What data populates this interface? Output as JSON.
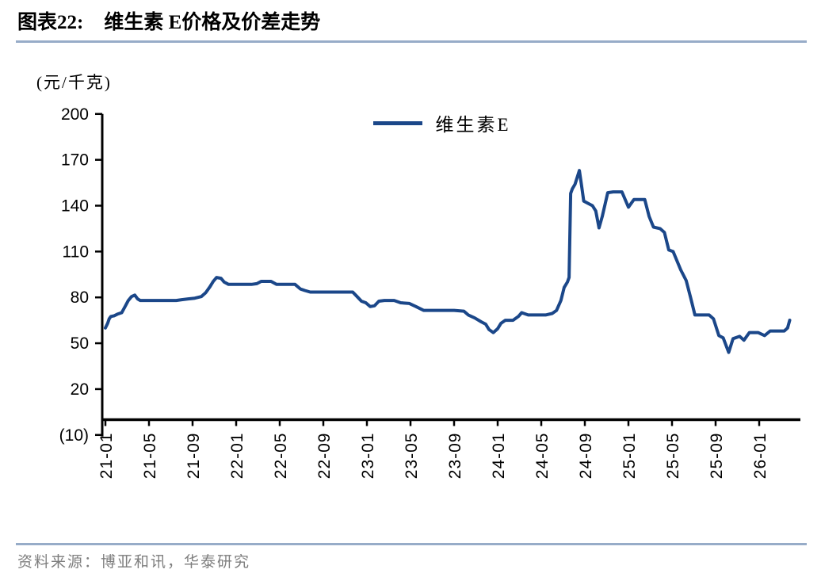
{
  "figure": {
    "label": "图表22:",
    "title": "维生素 E价格及价差走势",
    "unit": "(元/千克)",
    "source": "资料来源：博亚和讯，华泰研究"
  },
  "colors": {
    "line": "#1b4789",
    "separator": "#97acc8",
    "axis": "#000000",
    "source_text": "#7e7e7e"
  },
  "chart_data": {
    "type": "line",
    "title": "维生素 E价格及价差走势",
    "ylabel": "(元/千克)",
    "xlabel": "",
    "grid": false,
    "legend_position": "top-center",
    "ylim": [
      -10,
      200
    ],
    "yticks": [
      200,
      170,
      140,
      110,
      80,
      50,
      20,
      -10
    ],
    "ytick_labels": [
      "200",
      "170",
      "140",
      "110",
      "80",
      "50",
      "20",
      "(10)"
    ],
    "x_start": "2021-01",
    "x_end": "2026-03",
    "x_unit": "months since 2021-01",
    "x_ticks": [
      {
        "offset": 0,
        "label": "21-01"
      },
      {
        "offset": 4,
        "label": "21-05"
      },
      {
        "offset": 8,
        "label": "21-09"
      },
      {
        "offset": 12,
        "label": "22-01"
      },
      {
        "offset": 16,
        "label": "22-05"
      },
      {
        "offset": 20,
        "label": "22-09"
      },
      {
        "offset": 24,
        "label": "23-01"
      },
      {
        "offset": 28,
        "label": "23-05"
      },
      {
        "offset": 32,
        "label": "23-09"
      },
      {
        "offset": 36,
        "label": "24-01"
      },
      {
        "offset": 40,
        "label": "24-05"
      },
      {
        "offset": 44,
        "label": "24-09"
      },
      {
        "offset": 48,
        "label": "25-01"
      },
      {
        "offset": 52,
        "label": "25-05"
      },
      {
        "offset": 56,
        "label": "25-09"
      },
      {
        "offset": 60,
        "label": "26-01"
      }
    ],
    "series": [
      {
        "name": "维生素E",
        "color": "#1b4789",
        "points": [
          [
            0,
            60
          ],
          [
            0.2,
            63
          ],
          [
            0.35,
            66
          ],
          [
            0.5,
            67.5
          ],
          [
            0.8,
            68
          ],
          [
            1.1,
            69
          ],
          [
            1.5,
            70
          ],
          [
            1.8,
            74
          ],
          [
            2.1,
            78
          ],
          [
            2.4,
            80.5
          ],
          [
            2.7,
            81.5
          ],
          [
            2.95,
            79
          ],
          [
            3.2,
            78
          ],
          [
            4,
            78
          ],
          [
            5,
            78
          ],
          [
            6,
            78
          ],
          [
            6.5,
            78
          ],
          [
            7,
            78.5
          ],
          [
            7.6,
            79
          ],
          [
            8.2,
            79.5
          ],
          [
            8.8,
            80.5
          ],
          [
            9.2,
            83
          ],
          [
            9.6,
            87
          ],
          [
            9.9,
            90.5
          ],
          [
            10.2,
            93
          ],
          [
            10.6,
            92.5
          ],
          [
            10.9,
            90
          ],
          [
            11.3,
            88.5
          ],
          [
            12,
            88.5
          ],
          [
            12.7,
            88.5
          ],
          [
            13.4,
            88.5
          ],
          [
            13.9,
            89
          ],
          [
            14.3,
            90.5
          ],
          [
            15.2,
            90.5
          ],
          [
            15.7,
            88.5
          ],
          [
            16.5,
            88.5
          ],
          [
            17.4,
            88.5
          ],
          [
            17.9,
            85.5
          ],
          [
            18.3,
            84.5
          ],
          [
            18.8,
            83.5
          ],
          [
            19.6,
            83.5
          ],
          [
            20.6,
            83.5
          ],
          [
            21.6,
            83.5
          ],
          [
            22.7,
            83.5
          ],
          [
            23.1,
            80.5
          ],
          [
            23.5,
            77.5
          ],
          [
            23.9,
            76.5
          ],
          [
            24.3,
            74
          ],
          [
            24.7,
            74.5
          ],
          [
            25.1,
            77.5
          ],
          [
            25.6,
            78
          ],
          [
            26.5,
            78
          ],
          [
            27.1,
            76.5
          ],
          [
            27.9,
            76
          ],
          [
            28.5,
            74
          ],
          [
            29.2,
            71.5
          ],
          [
            30,
            71.5
          ],
          [
            31,
            71.5
          ],
          [
            32,
            71.5
          ],
          [
            32.9,
            71
          ],
          [
            33.3,
            68.5
          ],
          [
            33.9,
            66.5
          ],
          [
            34.5,
            64
          ],
          [
            34.9,
            62.5
          ],
          [
            35.2,
            59
          ],
          [
            35.6,
            57
          ],
          [
            36,
            59.5
          ],
          [
            36.3,
            63
          ],
          [
            36.7,
            65
          ],
          [
            37.4,
            65
          ],
          [
            37.9,
            67.5
          ],
          [
            38.2,
            70
          ],
          [
            38.8,
            68.5
          ],
          [
            39.6,
            68.5
          ],
          [
            40.4,
            68.5
          ],
          [
            41,
            69.5
          ],
          [
            41.4,
            71.5
          ],
          [
            41.8,
            78
          ],
          [
            42.1,
            86.5
          ],
          [
            42.4,
            90
          ],
          [
            42.55,
            93
          ],
          [
            42.7,
            148
          ],
          [
            42.85,
            151
          ],
          [
            43.1,
            154
          ],
          [
            43.5,
            163
          ],
          [
            43.7,
            153
          ],
          [
            43.9,
            143
          ],
          [
            44.3,
            141.5
          ],
          [
            44.7,
            140
          ],
          [
            45,
            136.5
          ],
          [
            45.3,
            125.5
          ],
          [
            45.6,
            133
          ],
          [
            46.1,
            148.5
          ],
          [
            46.6,
            149
          ],
          [
            47.4,
            149
          ],
          [
            48,
            139
          ],
          [
            48.5,
            144
          ],
          [
            49.5,
            144
          ],
          [
            49.9,
            133
          ],
          [
            50.3,
            126
          ],
          [
            50.9,
            125
          ],
          [
            51.3,
            122.5
          ],
          [
            51.7,
            111
          ],
          [
            52.1,
            110
          ],
          [
            52.8,
            98
          ],
          [
            53.3,
            91
          ],
          [
            53.7,
            80
          ],
          [
            54.1,
            68.5
          ],
          [
            54.8,
            68.5
          ],
          [
            55.4,
            68.5
          ],
          [
            55.8,
            66
          ],
          [
            56.3,
            55
          ],
          [
            56.7,
            53.5
          ],
          [
            57.2,
            44
          ],
          [
            57.6,
            53
          ],
          [
            58.2,
            54.5
          ],
          [
            58.6,
            52
          ],
          [
            59.1,
            57
          ],
          [
            59.9,
            57
          ],
          [
            60.5,
            55
          ],
          [
            61,
            58
          ],
          [
            62.3,
            58
          ],
          [
            62.6,
            60
          ],
          [
            62.8,
            65
          ]
        ]
      }
    ]
  }
}
